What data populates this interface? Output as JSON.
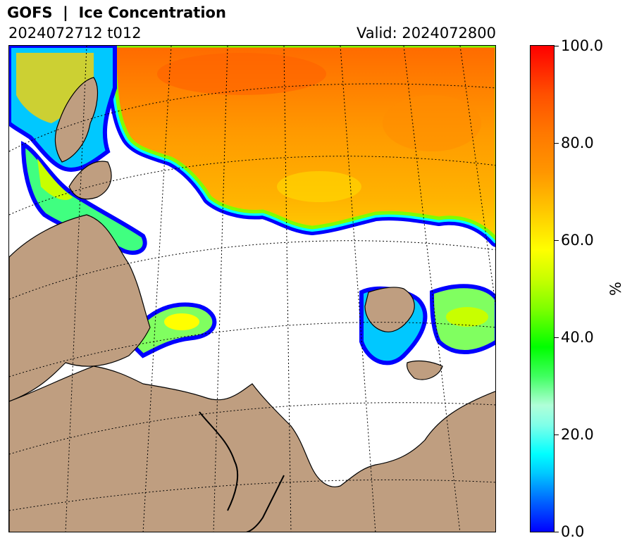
{
  "header": {
    "title": "GOFS  |  Ice Concentration",
    "init_time": "2024072712 t012",
    "valid_time": "Valid: 2024072800"
  },
  "colorbar": {
    "unit": "%",
    "ticks": [
      "0.0",
      "20.0",
      "40.0",
      "60.0",
      "80.0",
      "100.0"
    ],
    "range": [
      0,
      100
    ],
    "colormap": [
      "#0000ff",
      "#00ffff",
      "#00ff00",
      "#ffff00",
      "#ff7800",
      "#ff0000"
    ]
  },
  "map": {
    "land_color": "#bf9e80",
    "open_water_color": "#ffffff",
    "graticule": "dotted"
  }
}
